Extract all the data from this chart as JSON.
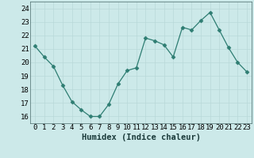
{
  "x": [
    0,
    1,
    2,
    3,
    4,
    5,
    6,
    7,
    8,
    9,
    10,
    11,
    12,
    13,
    14,
    15,
    16,
    17,
    18,
    19,
    20,
    21,
    22,
    23
  ],
  "y": [
    21.2,
    20.4,
    19.7,
    18.3,
    17.1,
    16.5,
    16.0,
    16.0,
    16.9,
    18.4,
    19.4,
    19.6,
    21.8,
    21.6,
    21.3,
    20.4,
    22.6,
    22.4,
    23.1,
    23.7,
    22.4,
    21.1,
    20.0,
    19.3
  ],
  "line_color": "#2e7d72",
  "marker": "D",
  "marker_size": 2.5,
  "bg_color": "#cce9e9",
  "grid_color": "#b8d8d8",
  "xlabel": "Humidex (Indice chaleur)",
  "ylim": [
    15.5,
    24.5
  ],
  "xlim": [
    -0.5,
    23.5
  ],
  "yticks": [
    16,
    17,
    18,
    19,
    20,
    21,
    22,
    23,
    24
  ],
  "xtick_labels": [
    "0",
    "1",
    "2",
    "3",
    "4",
    "5",
    "6",
    "7",
    "8",
    "9",
    "10",
    "11",
    "12",
    "13",
    "14",
    "15",
    "16",
    "17",
    "18",
    "19",
    "20",
    "21",
    "22",
    "23"
  ],
  "xlabel_fontsize": 7.5,
  "tick_fontsize": 6.5
}
